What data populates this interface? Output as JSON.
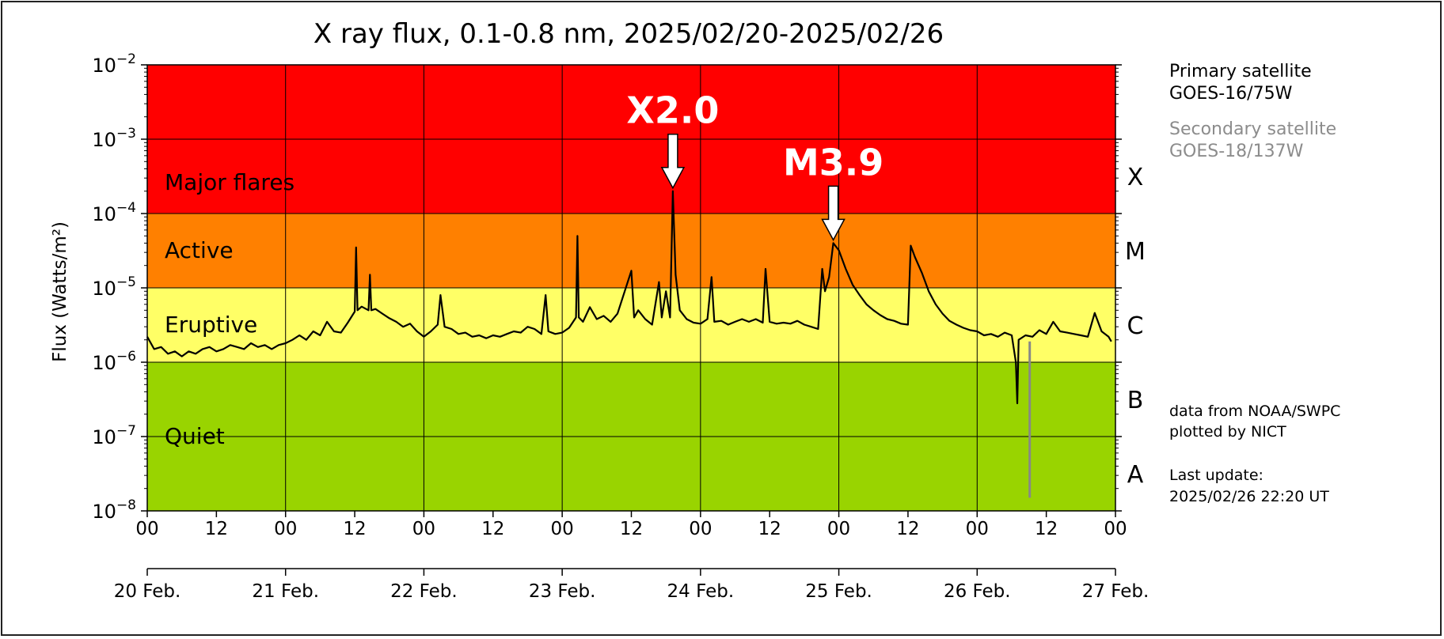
{
  "chart_data": {
    "type": "line",
    "title": "X ray flux, 0.1-0.8 nm, 2025/02/20-2025/02/26",
    "ylabel": "Flux (Watts/m²)",
    "xlabel": "",
    "yscale": "log",
    "ylim": [
      1e-08,
      0.01
    ],
    "xlim": [
      "2025-02-20 00:00",
      "2025-02-27 00:00"
    ],
    "y_tick_base": "10",
    "y_tick_exponents": [
      "−8",
      "−7",
      "−6",
      "−5",
      "−4",
      "−3",
      "−2"
    ],
    "x_hour_ticks": [
      "00",
      "12",
      "00",
      "12",
      "00",
      "12",
      "00",
      "12",
      "00",
      "12",
      "00",
      "12",
      "00",
      "12",
      "00"
    ],
    "x_day_ticks": [
      "20 Feb.",
      "21 Feb.",
      "22 Feb.",
      "23 Feb.",
      "24 Feb.",
      "25 Feb.",
      "26 Feb.",
      "27 Feb."
    ],
    "grid": true,
    "bands": [
      {
        "label": "Major flares",
        "from": 0.0001,
        "to": 0.01,
        "color": "#ff0000"
      },
      {
        "label": "Active",
        "from": 1e-05,
        "to": 0.0001,
        "color": "#ff8000"
      },
      {
        "label": "Eruptive",
        "from": 1e-06,
        "to": 1e-05,
        "color": "#ffff66"
      },
      {
        "label": "Quiet",
        "from": 1e-08,
        "to": 1e-06,
        "color": "#99d400"
      }
    ],
    "classes": [
      "X",
      "M",
      "C",
      "B",
      "A"
    ],
    "annotations": [
      {
        "text": "X2.0",
        "x_day": 3.8,
        "y": 0.0002
      },
      {
        "text": "M3.9",
        "x_day": 4.96,
        "y": 4e-05
      }
    ],
    "series": [
      {
        "name": "GOES-16/75W",
        "color": "#000000",
        "points": [
          [
            0.0,
            2.2e-06
          ],
          [
            0.05,
            1.5e-06
          ],
          [
            0.1,
            1.6e-06
          ],
          [
            0.15,
            1.3e-06
          ],
          [
            0.2,
            1.4e-06
          ],
          [
            0.25,
            1.2e-06
          ],
          [
            0.3,
            1.4e-06
          ],
          [
            0.35,
            1.3e-06
          ],
          [
            0.4,
            1.5e-06
          ],
          [
            0.45,
            1.6e-06
          ],
          [
            0.5,
            1.4e-06
          ],
          [
            0.55,
            1.5e-06
          ],
          [
            0.6,
            1.7e-06
          ],
          [
            0.65,
            1.6e-06
          ],
          [
            0.7,
            1.5e-06
          ],
          [
            0.75,
            1.8e-06
          ],
          [
            0.8,
            1.6e-06
          ],
          [
            0.85,
            1.7e-06
          ],
          [
            0.9,
            1.5e-06
          ],
          [
            0.95,
            1.7e-06
          ],
          [
            1.0,
            1.8e-06
          ],
          [
            1.05,
            2e-06
          ],
          [
            1.1,
            2.3e-06
          ],
          [
            1.15,
            2e-06
          ],
          [
            1.2,
            2.6e-06
          ],
          [
            1.25,
            2.3e-06
          ],
          [
            1.3,
            3.5e-06
          ],
          [
            1.35,
            2.6e-06
          ],
          [
            1.4,
            2.5e-06
          ],
          [
            1.45,
            3.4e-06
          ],
          [
            1.5,
            4.8e-06
          ],
          [
            1.51,
            3.5e-05
          ],
          [
            1.52,
            5e-06
          ],
          [
            1.55,
            5.6e-06
          ],
          [
            1.6,
            5e-06
          ],
          [
            1.61,
            1.5e-05
          ],
          [
            1.62,
            5e-06
          ],
          [
            1.65,
            5.2e-06
          ],
          [
            1.7,
            4.5e-06
          ],
          [
            1.75,
            3.9e-06
          ],
          [
            1.8,
            3.5e-06
          ],
          [
            1.85,
            3e-06
          ],
          [
            1.9,
            3.3e-06
          ],
          [
            1.95,
            2.6e-06
          ],
          [
            2.0,
            2.2e-06
          ],
          [
            2.05,
            2.6e-06
          ],
          [
            2.1,
            3.2e-06
          ],
          [
            2.12,
            8e-06
          ],
          [
            2.15,
            3e-06
          ],
          [
            2.2,
            2.8e-06
          ],
          [
            2.25,
            2.4e-06
          ],
          [
            2.3,
            2.5e-06
          ],
          [
            2.35,
            2.2e-06
          ],
          [
            2.4,
            2.3e-06
          ],
          [
            2.45,
            2.1e-06
          ],
          [
            2.5,
            2.3e-06
          ],
          [
            2.55,
            2.2e-06
          ],
          [
            2.6,
            2.4e-06
          ],
          [
            2.65,
            2.6e-06
          ],
          [
            2.7,
            2.5e-06
          ],
          [
            2.75,
            3e-06
          ],
          [
            2.8,
            2.8e-06
          ],
          [
            2.85,
            2.4e-06
          ],
          [
            2.88,
            8e-06
          ],
          [
            2.9,
            2.6e-06
          ],
          [
            2.95,
            2.4e-06
          ],
          [
            3.0,
            2.5e-06
          ],
          [
            3.05,
            2.9e-06
          ],
          [
            3.1,
            4e-06
          ],
          [
            3.11,
            5e-05
          ],
          [
            3.12,
            4e-06
          ],
          [
            3.15,
            3.5e-06
          ],
          [
            3.2,
            5.5e-06
          ],
          [
            3.25,
            3.8e-06
          ],
          [
            3.3,
            4.2e-06
          ],
          [
            3.35,
            3.5e-06
          ],
          [
            3.4,
            4.5e-06
          ],
          [
            3.5,
            1.7e-05
          ],
          [
            3.52,
            4e-06
          ],
          [
            3.55,
            5e-06
          ],
          [
            3.6,
            3.8e-06
          ],
          [
            3.65,
            3.2e-06
          ],
          [
            3.7,
            1.2e-05
          ],
          [
            3.72,
            4e-06
          ],
          [
            3.75,
            9e-06
          ],
          [
            3.78,
            4e-06
          ],
          [
            3.8,
            0.0002
          ],
          [
            3.82,
            1.5e-05
          ],
          [
            3.85,
            5e-06
          ],
          [
            3.9,
            3.8e-06
          ],
          [
            3.95,
            3.4e-06
          ],
          [
            4.0,
            3.3e-06
          ],
          [
            4.05,
            3.8e-06
          ],
          [
            4.08,
            1.4e-05
          ],
          [
            4.1,
            3.5e-06
          ],
          [
            4.15,
            3.6e-06
          ],
          [
            4.2,
            3.2e-06
          ],
          [
            4.25,
            3.5e-06
          ],
          [
            4.3,
            3.8e-06
          ],
          [
            4.35,
            3.5e-06
          ],
          [
            4.4,
            3.8e-06
          ],
          [
            4.45,
            3.4e-06
          ],
          [
            4.47,
            1.8e-05
          ],
          [
            4.5,
            3.5e-06
          ],
          [
            4.55,
            3.3e-06
          ],
          [
            4.6,
            3.4e-06
          ],
          [
            4.65,
            3.3e-06
          ],
          [
            4.7,
            3.6e-06
          ],
          [
            4.75,
            3.2e-06
          ],
          [
            4.8,
            3e-06
          ],
          [
            4.85,
            2.8e-06
          ],
          [
            4.88,
            1.8e-05
          ],
          [
            4.9,
            9e-06
          ],
          [
            4.93,
            1.4e-05
          ],
          [
            4.96,
            4e-05
          ],
          [
            5.0,
            3.2e-05
          ],
          [
            5.05,
            1.8e-05
          ],
          [
            5.1,
            1.1e-05
          ],
          [
            5.15,
            8e-06
          ],
          [
            5.2,
            6e-06
          ],
          [
            5.25,
            5e-06
          ],
          [
            5.3,
            4.3e-06
          ],
          [
            5.35,
            3.8e-06
          ],
          [
            5.4,
            3.6e-06
          ],
          [
            5.45,
            3.3e-06
          ],
          [
            5.5,
            3.2e-06
          ],
          [
            5.52,
            3.7e-05
          ],
          [
            5.55,
            2.6e-05
          ],
          [
            5.6,
            1.6e-05
          ],
          [
            5.65,
            9e-06
          ],
          [
            5.7,
            6e-06
          ],
          [
            5.75,
            4.5e-06
          ],
          [
            5.8,
            3.6e-06
          ],
          [
            5.85,
            3.2e-06
          ],
          [
            5.9,
            2.9e-06
          ],
          [
            5.95,
            2.7e-06
          ],
          [
            6.0,
            2.6e-06
          ],
          [
            6.05,
            2.3e-06
          ],
          [
            6.1,
            2.4e-06
          ],
          [
            6.15,
            2.2e-06
          ],
          [
            6.2,
            2.5e-06
          ],
          [
            6.25,
            2.3e-06
          ],
          [
            6.28,
            1e-06
          ],
          [
            6.29,
            2.8e-07
          ],
          [
            6.3,
            2e-06
          ],
          [
            6.35,
            2.3e-06
          ],
          [
            6.4,
            2.2e-06
          ],
          [
            6.45,
            2.7e-06
          ],
          [
            6.5,
            2.4e-06
          ],
          [
            6.55,
            3.5e-06
          ],
          [
            6.6,
            2.6e-06
          ],
          [
            6.65,
            2.5e-06
          ],
          [
            6.7,
            2.4e-06
          ],
          [
            6.75,
            2.3e-06
          ],
          [
            6.8,
            2.2e-06
          ],
          [
            6.85,
            4.6e-06
          ],
          [
            6.9,
            2.6e-06
          ],
          [
            6.95,
            2.2e-06
          ],
          [
            6.97,
            1.9e-06
          ]
        ]
      },
      {
        "name": "GOES-18/137W",
        "color": "#888888",
        "points": [
          [
            6.38,
            1.9e-06
          ],
          [
            6.38,
            1.5e-08
          ]
        ]
      }
    ]
  },
  "legend": {
    "primary_label": "Primary satellite",
    "primary_name": "GOES-16/75W",
    "secondary_label": "Secondary satellite",
    "secondary_name": "GOES-18/137W",
    "primary_color": "#000000",
    "secondary_color": "#8c8c8c"
  },
  "credits": {
    "line1": "data from NOAA/SWPC",
    "line2": "plotted by NICT",
    "update_label": "Last update:",
    "update_value": "2025/02/26 22:20 UT"
  }
}
